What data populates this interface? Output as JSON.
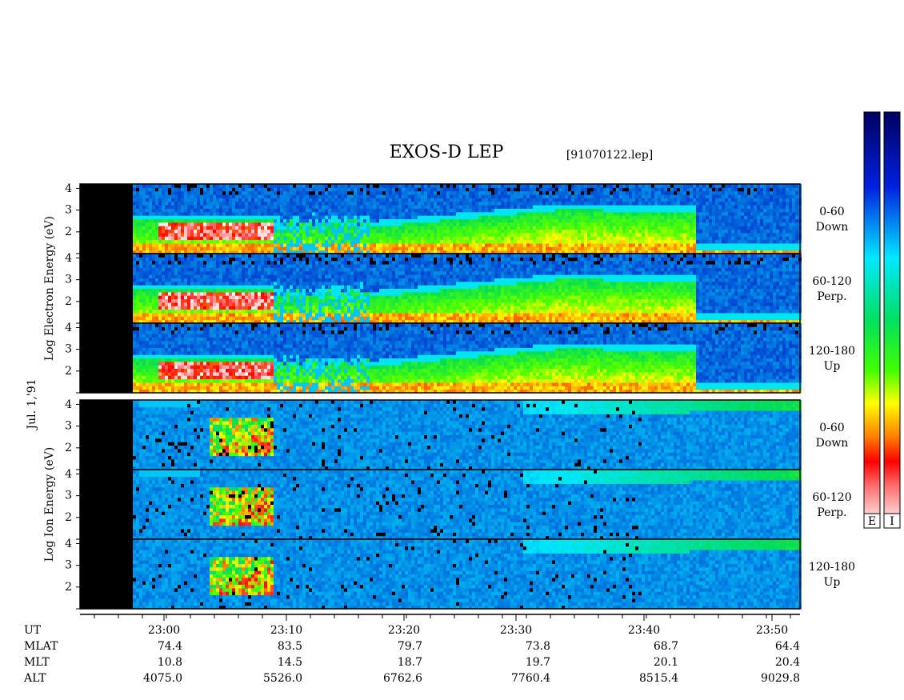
{
  "chart_data": {
    "type": "spectrogram",
    "title": "EXOS-D LEP",
    "file_label": "[91070122.lep]",
    "date_label": "Jul. 1,'91",
    "panels": [
      {
        "ylabel": "Log Electron Energy (eV)",
        "subpanels": [
          {
            "angle": "0-60",
            "direction": "Down"
          },
          {
            "angle": "60-120",
            "direction": "Perp."
          },
          {
            "angle": "120-180",
            "direction": "Up"
          }
        ]
      },
      {
        "ylabel": "Log Ion Energy (eV)",
        "subpanels": [
          {
            "angle": "0-60",
            "direction": "Down"
          },
          {
            "angle": "60-120",
            "direction": "Perp."
          },
          {
            "angle": "120-180",
            "direction": "Up"
          }
        ]
      }
    ],
    "ylim": [
      1,
      4.2
    ],
    "yticks": [
      2,
      3,
      4
    ],
    "colorbar_labels": [
      "E",
      "I"
    ],
    "x_categories": [
      "23:00",
      "23:10",
      "23:20",
      "23:30",
      "23:40",
      "23:50"
    ],
    "ephemeris": [
      {
        "label": "UT",
        "values": []
      },
      {
        "label": "MLAT",
        "values": [
          "74.4",
          "83.5",
          "79.7",
          "73.8",
          "68.7",
          "64.4"
        ]
      },
      {
        "label": "MLT",
        "values": [
          "10.8",
          "14.5",
          "18.7",
          "19.7",
          "20.1",
          "20.4"
        ]
      },
      {
        "label": "ALT",
        "values": [
          "4075.0",
          "5526.0",
          "6762.6",
          "7760.4",
          "8515.4",
          "9029.8"
        ]
      }
    ]
  }
}
